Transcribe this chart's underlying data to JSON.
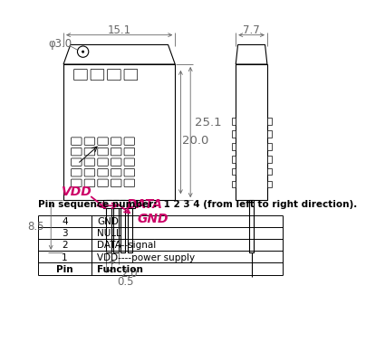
{
  "bg_color": "#ffffff",
  "line_color": "#000000",
  "arrow_color": "#cc0066",
  "dim_color": "#666666",
  "title_note": "Pin sequence number:  1 2 3 4 (from left to right direction).",
  "table_headers": [
    "Pin",
    "Function"
  ],
  "table_rows": [
    [
      "1",
      "VDD----power supply"
    ],
    [
      "2",
      "DATA--signal"
    ],
    [
      "3",
      "NULL"
    ],
    [
      "4",
      "GND"
    ]
  ],
  "dim_15_1": "15.1",
  "dim_7_7": "7.7",
  "dim_phi_3": "φ3.0",
  "dim_25_1": "25.1",
  "dim_20_0": "20.0",
  "dim_8_5": "8.5",
  "dim_2_0": "2.0",
  "dim_0_5": "0.5",
  "label_DATA": "DATA",
  "label_GND": "GND",
  "label_VDD": "VDD"
}
